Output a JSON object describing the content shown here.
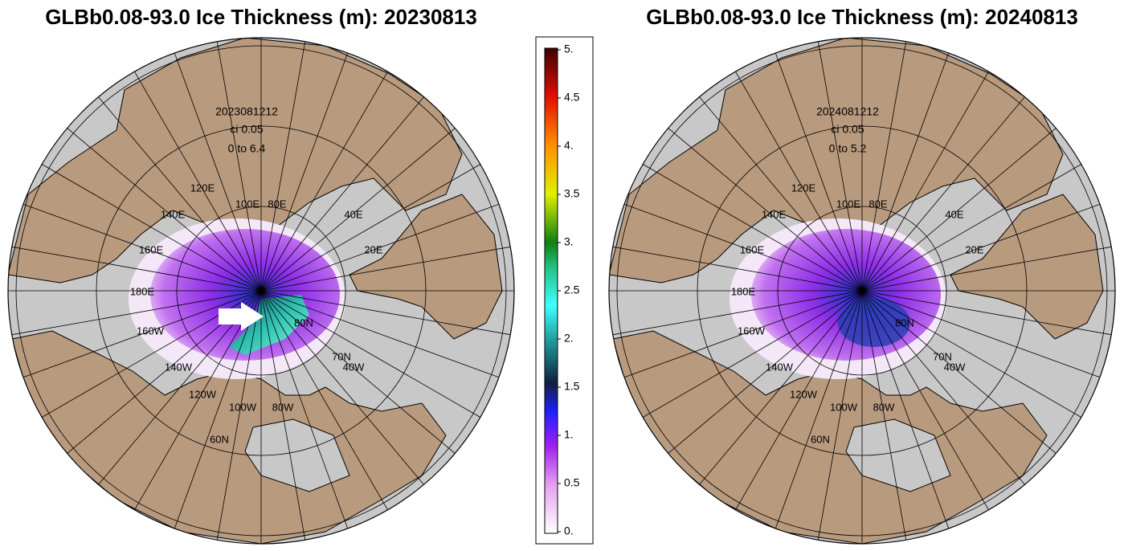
{
  "maps": [
    {
      "title": "GLBb0.08-93.0 Ice Thickness (m): 20230813",
      "annotation": {
        "date": "2023081212",
        "ci": "ci 0.05",
        "range": "0 to 6.4"
      },
      "labels": [
        "120E",
        "100E",
        "80E",
        "40E",
        "20E",
        "140E",
        "160E",
        "180E",
        "160W",
        "140W",
        "120W",
        "100W",
        "80W",
        "80N",
        "70N",
        "40W",
        "60N"
      ]
    },
    {
      "title": "GLBb0.08-93.0 Ice Thickness (m): 20240813",
      "annotation": {
        "date": "2024081212",
        "ci": "ci 0.05",
        "range": "0 to 5.2"
      },
      "labels": [
        "120E",
        "100E",
        "80E",
        "40E",
        "20E",
        "140E",
        "160E",
        "180E",
        "160W",
        "140W",
        "120W",
        "100W",
        "80W",
        "80N",
        "70N",
        "40W",
        "60N"
      ]
    }
  ],
  "colorbar": {
    "ticks": [
      "5.",
      "4.5",
      "4.",
      "3.5",
      "3.",
      "2.5",
      "2.",
      "1.5",
      "1.",
      "0.5",
      "0."
    ]
  }
}
